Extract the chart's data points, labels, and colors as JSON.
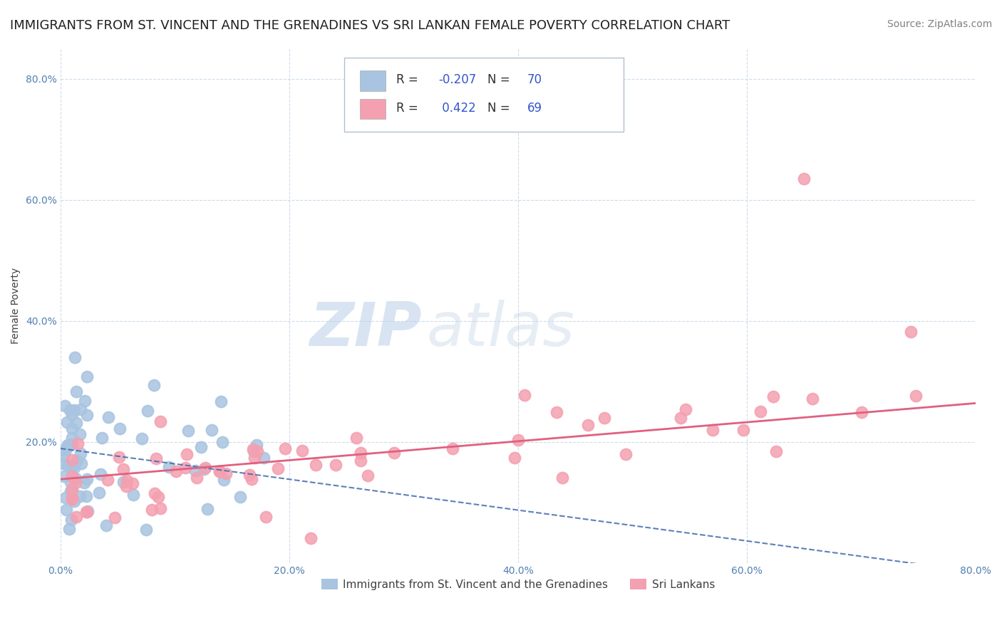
{
  "title": "IMMIGRANTS FROM ST. VINCENT AND THE GRENADINES VS SRI LANKAN FEMALE POVERTY CORRELATION CHART",
  "source": "Source: ZipAtlas.com",
  "ylabel": "Female Poverty",
  "xlabel": "",
  "xlim": [
    0,
    0.8
  ],
  "ylim": [
    0,
    0.85
  ],
  "xticks": [
    0.0,
    0.2,
    0.4,
    0.6,
    0.8
  ],
  "yticks": [
    0.0,
    0.2,
    0.4,
    0.6,
    0.8
  ],
  "xtick_labels": [
    "0.0%",
    "20.0%",
    "40.0%",
    "60.0%",
    "80.0%"
  ],
  "ytick_labels": [
    "",
    "20.0%",
    "40.0%",
    "60.0%",
    "80.0%"
  ],
  "blue_R": -0.207,
  "blue_N": 70,
  "pink_R": 0.422,
  "pink_N": 69,
  "blue_color": "#a8c4e0",
  "pink_color": "#f4a0b0",
  "blue_line_color": "#4169b0",
  "pink_line_color": "#e06080",
  "watermark_zip": "ZIP",
  "watermark_atlas": "atlas",
  "legend_label_blue": "Immigrants from St. Vincent and the Grenadines",
  "legend_label_pink": "Sri Lankans",
  "background_color": "#ffffff",
  "grid_color": "#c8d8e8",
  "title_fontsize": 13,
  "axis_label_fontsize": 10,
  "tick_fontsize": 10,
  "source_fontsize": 10,
  "watermark_fontsize": 62,
  "watermark_color_zip": "#b8cfe8",
  "watermark_color_atlas": "#c8d8e8"
}
